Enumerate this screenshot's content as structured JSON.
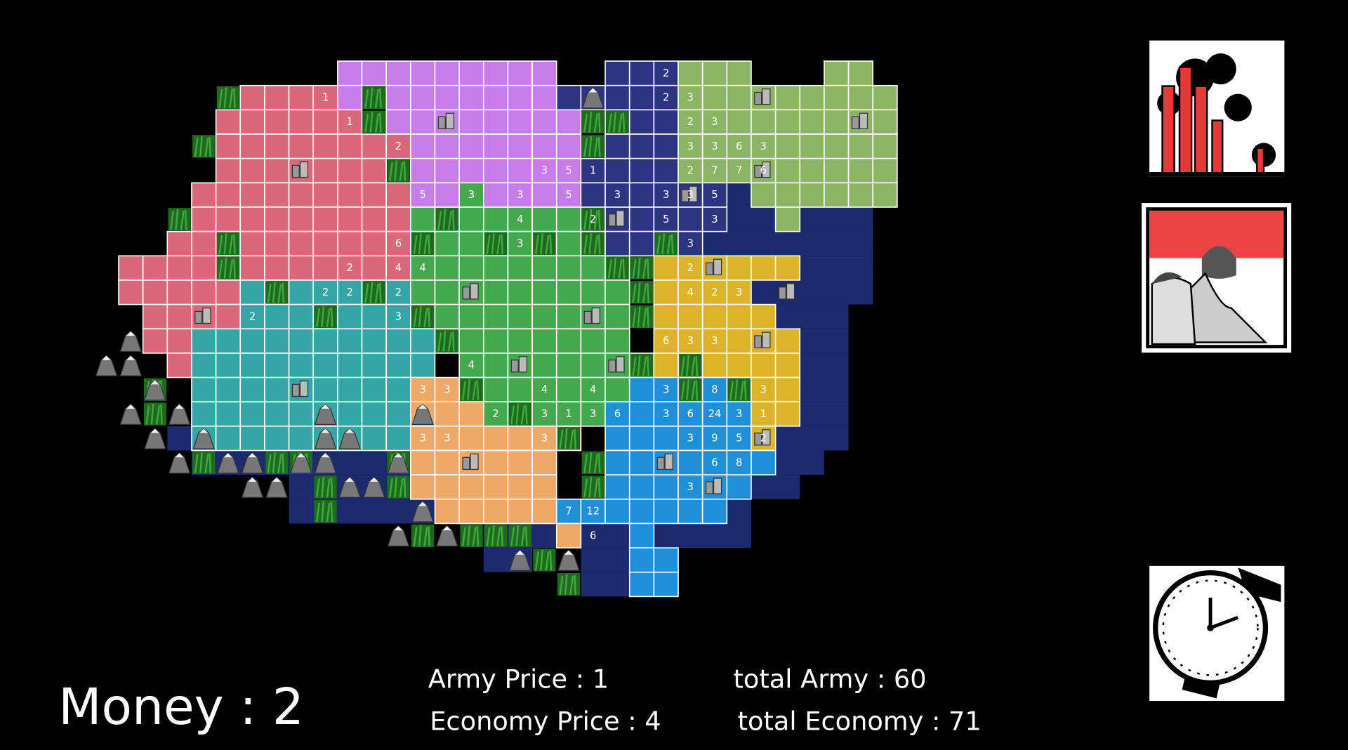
{
  "map": {
    "cell_numbers": [
      2,
      1,
      2,
      3,
      1,
      2,
      3,
      2,
      3,
      3,
      6,
      3,
      3,
      5,
      1,
      2,
      7,
      7,
      6,
      5,
      3,
      3,
      5,
      3,
      3,
      3,
      5,
      4,
      2,
      5,
      3,
      6,
      3,
      3,
      2,
      4,
      4,
      2,
      2,
      2,
      2,
      4,
      2,
      3,
      2,
      3,
      6,
      3,
      3,
      4,
      3,
      3,
      4,
      4,
      3,
      8,
      3,
      2,
      3,
      1,
      3,
      6,
      3,
      6,
      24,
      3,
      1,
      3,
      3,
      3,
      3,
      9,
      5,
      2,
      6,
      8,
      3,
      7,
      12,
      6
    ]
  },
  "footer": {
    "money": "Money : 2",
    "army_price": "Army Price : 1",
    "economy_price": "Economy Price : 4",
    "total_army": "total Army : 60",
    "total_economy": "total Economy : 71"
  }
}
